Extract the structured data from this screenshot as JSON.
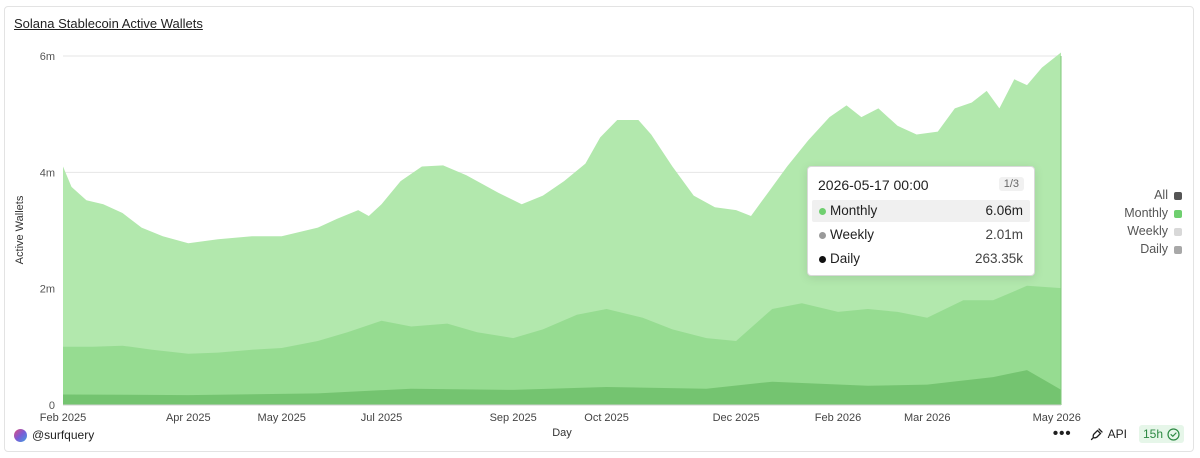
{
  "title": "Solana Stablecoin Active Wallets",
  "footer": {
    "author": "@surfquery",
    "more_label": "•••",
    "api_label": "API",
    "refresh_label": "15h"
  },
  "legend": {
    "items": [
      {
        "label": "All",
        "color": "#555555"
      },
      {
        "label": "Monthly",
        "color": "#6fcf6f"
      },
      {
        "label": "Weekly",
        "color": "#d8d8d8"
      },
      {
        "label": "Daily",
        "color": "#a8a8a8"
      }
    ]
  },
  "tooltip": {
    "date": "2026-05-17 00:00",
    "page": "1/3",
    "rows": [
      {
        "name": "Monthly",
        "value": "6.06m",
        "dot": "#6fcf6f"
      },
      {
        "name": "Weekly",
        "value": "2.01m",
        "dot": "#9a9a9a"
      },
      {
        "name": "Daily",
        "value": "263.35k",
        "dot": "#111111"
      }
    ]
  },
  "chart_data": {
    "type": "area",
    "title": "Solana Stablecoin Active Wallets",
    "xlabel": "Day",
    "ylabel": "Active Wallets",
    "ylim": [
      0,
      6000000
    ],
    "yticks": [
      0,
      2000000,
      4000000,
      6000000
    ],
    "ytick_labels": [
      "0",
      "2m",
      "4m",
      "6m"
    ],
    "xlim": [
      "2025-02-01",
      "2026-05-17"
    ],
    "xticks": [
      "2025-02-01",
      "2025-04-01",
      "2025-05-15",
      "2025-07-01",
      "2025-09-01",
      "2025-10-15",
      "2025-12-15",
      "2026-02-01",
      "2026-03-15",
      "2026-05-15"
    ],
    "xtick_labels": [
      "Feb 2025",
      "Apr 2025",
      "May 2025",
      "Jul 2025",
      "Sep 2025",
      "Oct 2025",
      "Dec 2025",
      "Feb 2026",
      "Mar 2026",
      "May 2026"
    ],
    "grid": "horizontal",
    "legend_position": "right",
    "series": [
      {
        "name": "Monthly",
        "color": "#b2e8ad",
        "points": [
          [
            "2025-02-01",
            4100000
          ],
          [
            "2025-02-05",
            3750000
          ],
          [
            "2025-02-12",
            3520000
          ],
          [
            "2025-02-20",
            3450000
          ],
          [
            "2025-03-01",
            3300000
          ],
          [
            "2025-03-10",
            3050000
          ],
          [
            "2025-03-20",
            2900000
          ],
          [
            "2025-04-01",
            2780000
          ],
          [
            "2025-04-15",
            2850000
          ],
          [
            "2025-05-01",
            2900000
          ],
          [
            "2025-05-15",
            2900000
          ],
          [
            "2025-06-01",
            3050000
          ],
          [
            "2025-06-10",
            3200000
          ],
          [
            "2025-06-20",
            3350000
          ],
          [
            "2025-06-25",
            3250000
          ],
          [
            "2025-07-01",
            3450000
          ],
          [
            "2025-07-10",
            3850000
          ],
          [
            "2025-07-20",
            4100000
          ],
          [
            "2025-07-30",
            4120000
          ],
          [
            "2025-08-10",
            3950000
          ],
          [
            "2025-08-25",
            3650000
          ],
          [
            "2025-09-05",
            3450000
          ],
          [
            "2025-09-15",
            3600000
          ],
          [
            "2025-09-25",
            3850000
          ],
          [
            "2025-10-05",
            4150000
          ],
          [
            "2025-10-12",
            4600000
          ],
          [
            "2025-10-20",
            4900000
          ],
          [
            "2025-10-30",
            4900000
          ],
          [
            "2025-11-05",
            4650000
          ],
          [
            "2025-11-15",
            4100000
          ],
          [
            "2025-11-25",
            3600000
          ],
          [
            "2025-12-05",
            3400000
          ],
          [
            "2025-12-15",
            3350000
          ],
          [
            "2025-12-22",
            3250000
          ],
          [
            "2025-12-30",
            3650000
          ],
          [
            "2026-01-08",
            4100000
          ],
          [
            "2026-01-18",
            4550000
          ],
          [
            "2026-01-28",
            4950000
          ],
          [
            "2026-02-05",
            5150000
          ],
          [
            "2026-02-12",
            4950000
          ],
          [
            "2026-02-20",
            5100000
          ],
          [
            "2026-03-01",
            4800000
          ],
          [
            "2026-03-10",
            4650000
          ],
          [
            "2026-03-20",
            4700000
          ],
          [
            "2026-03-28",
            5100000
          ],
          [
            "2026-04-05",
            5200000
          ],
          [
            "2026-04-12",
            5400000
          ],
          [
            "2026-04-18",
            5100000
          ],
          [
            "2026-04-25",
            5600000
          ],
          [
            "2026-05-01",
            5500000
          ],
          [
            "2026-05-08",
            5800000
          ],
          [
            "2026-05-17",
            6060000
          ]
        ]
      },
      {
        "name": "Weekly",
        "color": "#90d98c",
        "points": [
          [
            "2025-02-01",
            1000000
          ],
          [
            "2025-02-15",
            1000000
          ],
          [
            "2025-03-01",
            1020000
          ],
          [
            "2025-03-15",
            950000
          ],
          [
            "2025-04-01",
            880000
          ],
          [
            "2025-04-15",
            900000
          ],
          [
            "2025-05-01",
            950000
          ],
          [
            "2025-05-15",
            980000
          ],
          [
            "2025-06-01",
            1100000
          ],
          [
            "2025-06-15",
            1250000
          ],
          [
            "2025-07-01",
            1450000
          ],
          [
            "2025-07-15",
            1350000
          ],
          [
            "2025-08-01",
            1400000
          ],
          [
            "2025-08-15",
            1250000
          ],
          [
            "2025-09-01",
            1150000
          ],
          [
            "2025-09-15",
            1300000
          ],
          [
            "2025-10-01",
            1550000
          ],
          [
            "2025-10-15",
            1650000
          ],
          [
            "2025-11-01",
            1500000
          ],
          [
            "2025-11-15",
            1300000
          ],
          [
            "2025-12-01",
            1150000
          ],
          [
            "2025-12-15",
            1100000
          ],
          [
            "2026-01-01",
            1650000
          ],
          [
            "2026-01-15",
            1750000
          ],
          [
            "2026-02-01",
            1600000
          ],
          [
            "2026-02-15",
            1650000
          ],
          [
            "2026-03-01",
            1600000
          ],
          [
            "2026-03-15",
            1500000
          ],
          [
            "2026-04-01",
            1800000
          ],
          [
            "2026-04-15",
            1800000
          ],
          [
            "2026-05-01",
            2050000
          ],
          [
            "2026-05-17",
            2010000
          ]
        ]
      },
      {
        "name": "Daily",
        "color": "#6fbf6a",
        "points": [
          [
            "2025-02-01",
            180000
          ],
          [
            "2025-04-01",
            170000
          ],
          [
            "2025-06-01",
            200000
          ],
          [
            "2025-07-15",
            280000
          ],
          [
            "2025-09-01",
            260000
          ],
          [
            "2025-10-15",
            310000
          ],
          [
            "2025-12-01",
            280000
          ],
          [
            "2026-01-01",
            400000
          ],
          [
            "2026-02-15",
            330000
          ],
          [
            "2026-03-15",
            350000
          ],
          [
            "2026-04-15",
            480000
          ],
          [
            "2026-05-01",
            600000
          ],
          [
            "2026-05-17",
            263350
          ]
        ]
      }
    ]
  }
}
